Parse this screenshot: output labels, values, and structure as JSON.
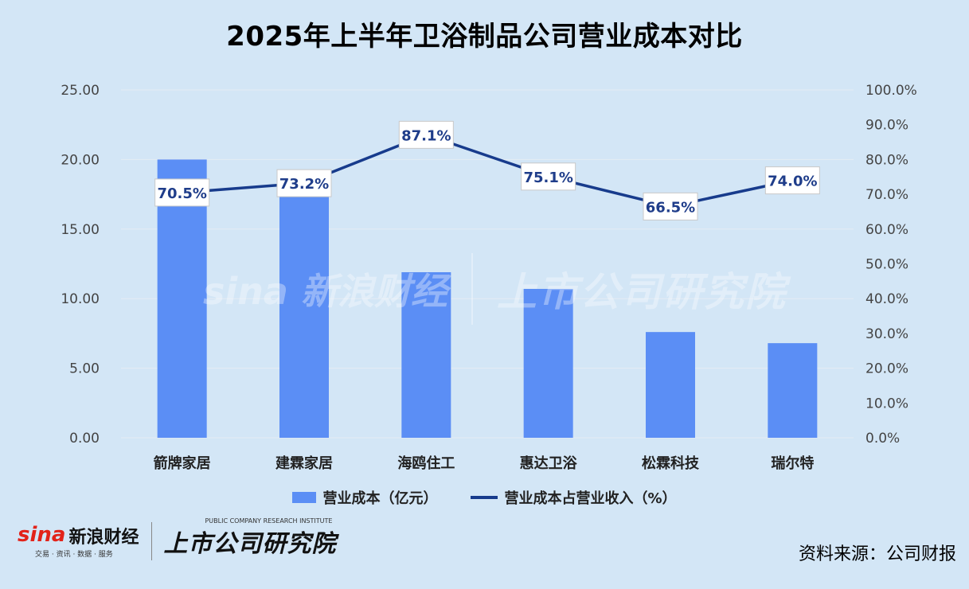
{
  "title": "2025年上半年卫浴制品公司营业成本对比",
  "source": "资料来源：公司财报",
  "logos": {
    "sina_word": "sina",
    "sina_cn": "新浪财经",
    "sina_sub": "交易 · 资讯 · 数据 · 服务",
    "research_cn": "上市公司研究院",
    "research_en": "PUBLIC COMPANY RESEARCH INSTITUTE"
  },
  "legend": {
    "bar_label": "营业成本（亿元）",
    "line_label": "营业成本占营业收入（%）"
  },
  "colors": {
    "bar": "#5b8ef5",
    "line": "#173b8c",
    "background": "#d3e6f6",
    "grid": "#e4ecf4"
  },
  "chart_data": {
    "type": "bar",
    "categories": [
      "箭牌家居",
      "建霖家居",
      "海鸥住工",
      "惠达卫浴",
      "松霖科技",
      "瑞尔特"
    ],
    "series": [
      {
        "name": "营业成本（亿元）",
        "type": "bar",
        "axis": "left",
        "values": [
          20.0,
          17.8,
          11.9,
          10.7,
          7.6,
          6.8
        ]
      },
      {
        "name": "营业成本占营业收入（%）",
        "type": "line",
        "axis": "right",
        "values": [
          70.5,
          73.2,
          87.1,
          75.1,
          66.5,
          74.0
        ],
        "data_labels": [
          "70.5%",
          "73.2%",
          "87.1%",
          "75.1%",
          "66.5%",
          "74.0%"
        ]
      }
    ],
    "ylim_left": [
      0,
      25
    ],
    "ylim_right": [
      0,
      100
    ],
    "left_ticks": [
      "0.00",
      "5.00",
      "10.00",
      "15.00",
      "20.00",
      "25.00"
    ],
    "right_ticks": [
      "0.0%",
      "10.0%",
      "20.0%",
      "30.0%",
      "40.0%",
      "50.0%",
      "60.0%",
      "70.0%",
      "80.0%",
      "90.0%",
      "100.0%"
    ],
    "grid": true,
    "legend_position": "bottom"
  }
}
